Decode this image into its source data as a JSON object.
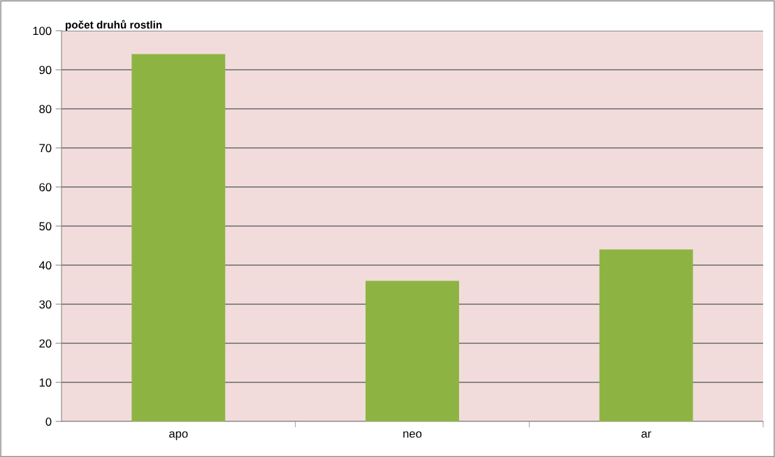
{
  "chart_data": {
    "type": "bar",
    "ylabel": "počet druhů rostlin",
    "categories": [
      "apo",
      "neo",
      "ar"
    ],
    "series": [
      {
        "color": "#8db443",
        "values": [
          94,
          36,
          44
        ]
      }
    ],
    "ylim": [
      0,
      100
    ],
    "yticks": [
      0,
      10,
      20,
      30,
      40,
      50,
      60,
      70,
      80,
      90,
      100
    ],
    "grid": "y",
    "legend": false
  }
}
